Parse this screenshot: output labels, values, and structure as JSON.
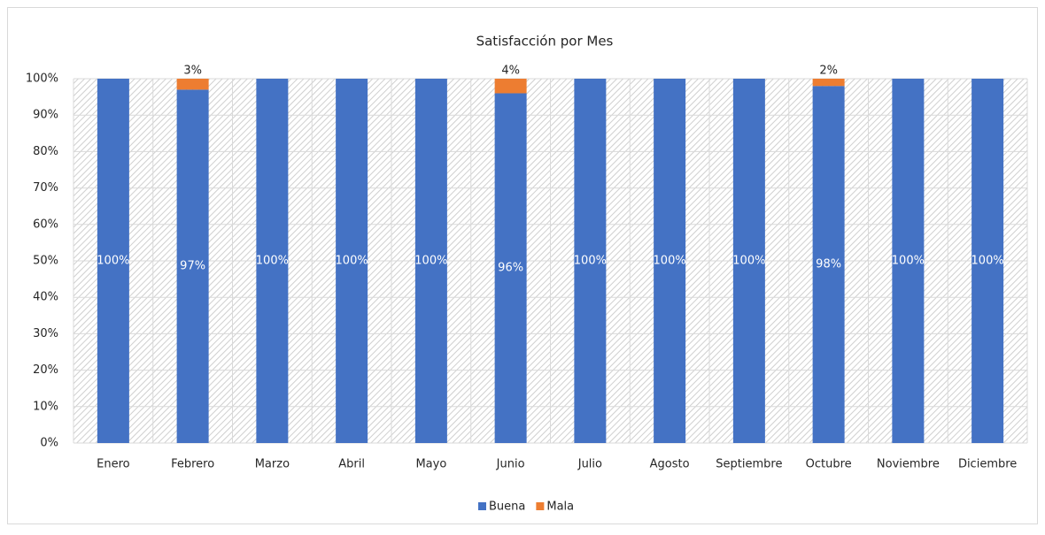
{
  "chart_data": {
    "type": "stacked_bar_100",
    "title": "Satisfacción por Mes",
    "categories": [
      "Enero",
      "Febrero",
      "Marzo",
      "Abril",
      "Mayo",
      "Junio",
      "Julio",
      "Agosto",
      "Septiembre",
      "Octubre",
      "Noviembre",
      "Diciembre"
    ],
    "series": [
      {
        "name": "Buena",
        "color": "#4472c4",
        "values": [
          100,
          97,
          100,
          100,
          100,
          96,
          100,
          100,
          100,
          98,
          100,
          100
        ],
        "value_labels": [
          "100%",
          "97%",
          "100%",
          "100%",
          "100%",
          "96%",
          "100%",
          "100%",
          "100%",
          "98%",
          "100%",
          "100%"
        ]
      },
      {
        "name": "Mala",
        "color": "#ed7d31",
        "values": [
          0,
          3,
          0,
          0,
          0,
          4,
          0,
          0,
          0,
          2,
          0,
          0
        ],
        "value_labels": [
          null,
          "3%",
          null,
          null,
          null,
          "4%",
          null,
          null,
          null,
          "2%",
          null,
          null
        ]
      }
    ],
    "ylim": [
      0,
      100
    ],
    "yticks": [
      {
        "value": 0,
        "label": "0%"
      },
      {
        "value": 10,
        "label": "10%"
      },
      {
        "value": 20,
        "label": "20%"
      },
      {
        "value": 30,
        "label": "30%"
      },
      {
        "value": 40,
        "label": "40%"
      },
      {
        "value": 50,
        "label": "50%"
      },
      {
        "value": 60,
        "label": "60%"
      },
      {
        "value": 70,
        "label": "70%"
      },
      {
        "value": 80,
        "label": "80%"
      },
      {
        "value": 90,
        "label": "90%"
      },
      {
        "value": 100,
        "label": "100%"
      }
    ],
    "grid": true,
    "legend": "bottom"
  }
}
